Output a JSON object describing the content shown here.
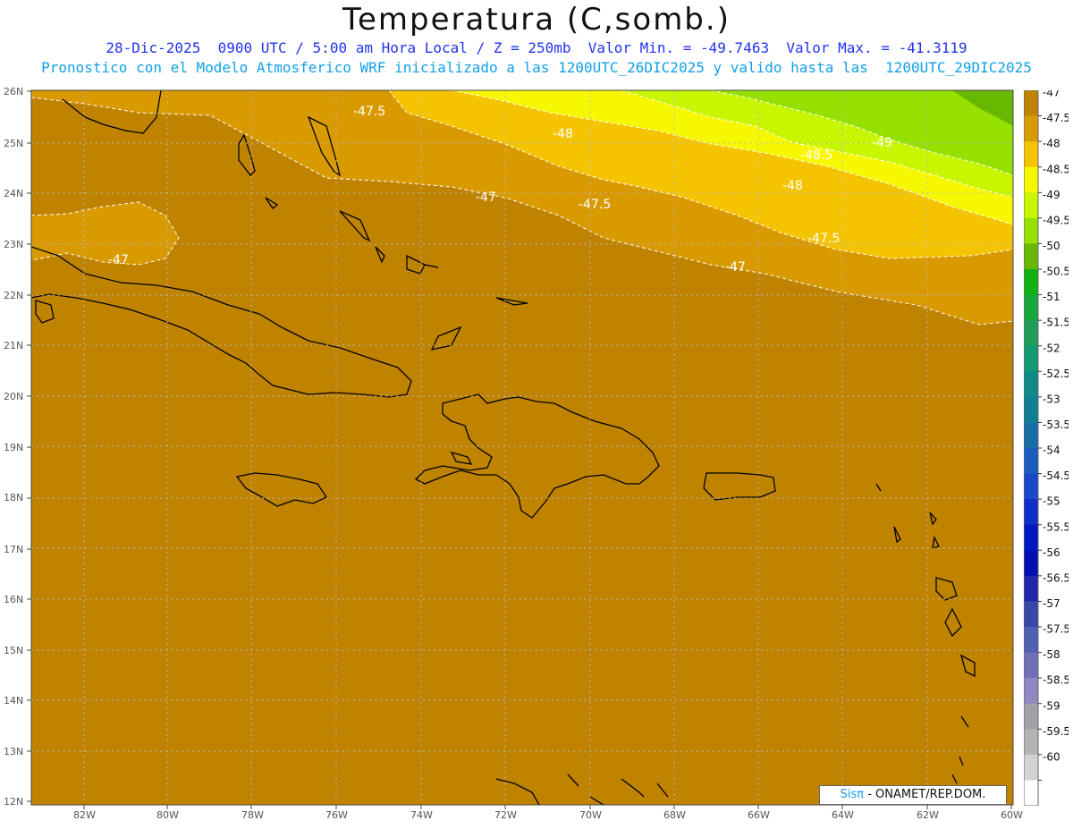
{
  "title": "Temperatura (C,somb.)",
  "subtitle1": "28-Dic-2025  0900 UTC / 5:00 am Hora Local / Z = 250mb  Valor Min. = -49.7463  Valor Max. = -41.3119",
  "subtitle2": "Pronostico con el Modelo Atmosferico WRF inicializado a las 1200UTC_26DIC2025 y valido hasta las  1200UTC_29DIC2025",
  "credit": {
    "brand": "Sisπ",
    "text": "- ONAMET/REP.DOM."
  },
  "map": {
    "lon_range": [
      -83.2,
      -60
    ],
    "lat_range": [
      11.9,
      26.1
    ],
    "lon_ticks": [
      "82W",
      "80W",
      "78W",
      "76W",
      "74W",
      "72W",
      "70W",
      "68W",
      "66W",
      "64W",
      "62W",
      "60W"
    ],
    "lat_ticks": [
      "26N",
      "25N",
      "24N",
      "23N",
      "22N",
      "21N",
      "20N",
      "19N",
      "18N",
      "17N",
      "16N",
      "15N",
      "14N",
      "13N",
      "12N"
    ],
    "contour_labels": [
      "-47.5",
      "-48",
      "-48.5",
      "-48",
      "-49",
      "-47",
      "-47.5",
      "-47.5",
      "-47",
      "-47"
    ]
  },
  "colorbar": {
    "labels": [
      "-47",
      "-47.5",
      "-48",
      "-48.5",
      "-49",
      "-49.5",
      "-50",
      "-50.5",
      "-51",
      "-51.5",
      "-52",
      "-52.5",
      "-53",
      "-53.5",
      "-54",
      "-54.5",
      "-55",
      "-55.5",
      "-56",
      "-56.5",
      "-57",
      "-57.5",
      "-58",
      "-58.5",
      "-59",
      "-59.5",
      "-60"
    ],
    "colors": [
      "#bf8300",
      "#d99a00",
      "#f5c400",
      "#f7f700",
      "#c8f500",
      "#96e000",
      "#66b800",
      "#12b012",
      "#18a83c",
      "#1e9e5a",
      "#149a74",
      "#108a86",
      "#0f7e94",
      "#1a6ea8",
      "#1a5cbf",
      "#1a48c8",
      "#1030c8",
      "#0018c0",
      "#0010b0",
      "#2028a8",
      "#3848a8",
      "#5060b0",
      "#7070b8",
      "#9088c0",
      "#a0a0a8",
      "#b4b4b4",
      "#d4d4d4",
      "#ffffff"
    ]
  }
}
